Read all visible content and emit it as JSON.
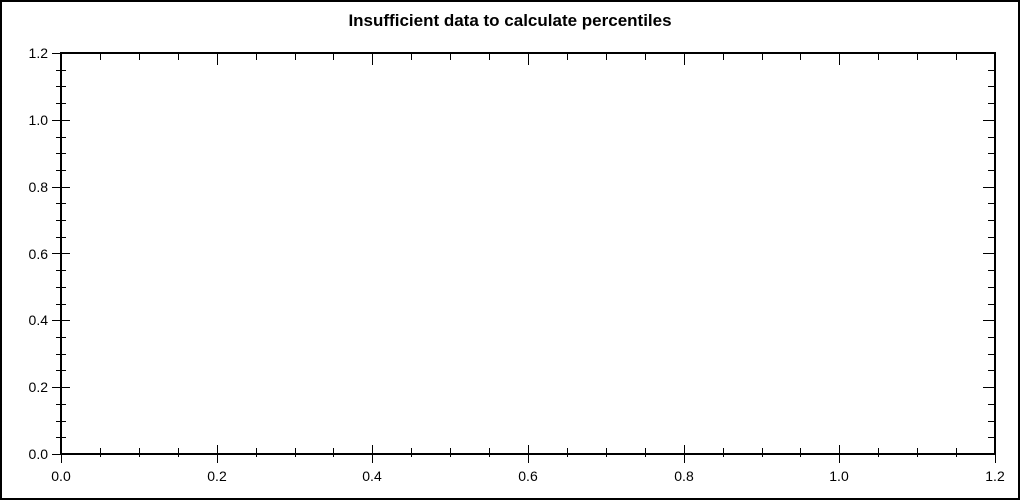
{
  "chart_data": {
    "type": "scatter",
    "title": "Insufficient data to calculate percentiles",
    "series": [],
    "points": [],
    "xlabel": "",
    "ylabel": "",
    "xlim": [
      0,
      1.2
    ],
    "ylim": [
      0,
      1.2
    ],
    "x_major_ticks": [
      0,
      0.2,
      0.4,
      0.6,
      0.8,
      1.0,
      1.2
    ],
    "y_major_ticks": [
      0,
      0.2,
      0.4,
      0.6,
      0.8,
      1.0,
      1.2
    ],
    "x_tick_labels": [
      "0.0",
      "0.2",
      "0.4",
      "0.6",
      "0.8",
      "1.0",
      "1.2"
    ],
    "y_tick_labels": [
      "1.2",
      "1.0",
      "0.8",
      "0.6",
      "0.4",
      "0.2",
      "0.0"
    ],
    "minor_tick_step": 0.05,
    "grid": false,
    "legend": null,
    "frame": "box",
    "annotations": []
  },
  "colors": {
    "background": "#ffffff",
    "axis": "#000000",
    "text": "#000000"
  }
}
